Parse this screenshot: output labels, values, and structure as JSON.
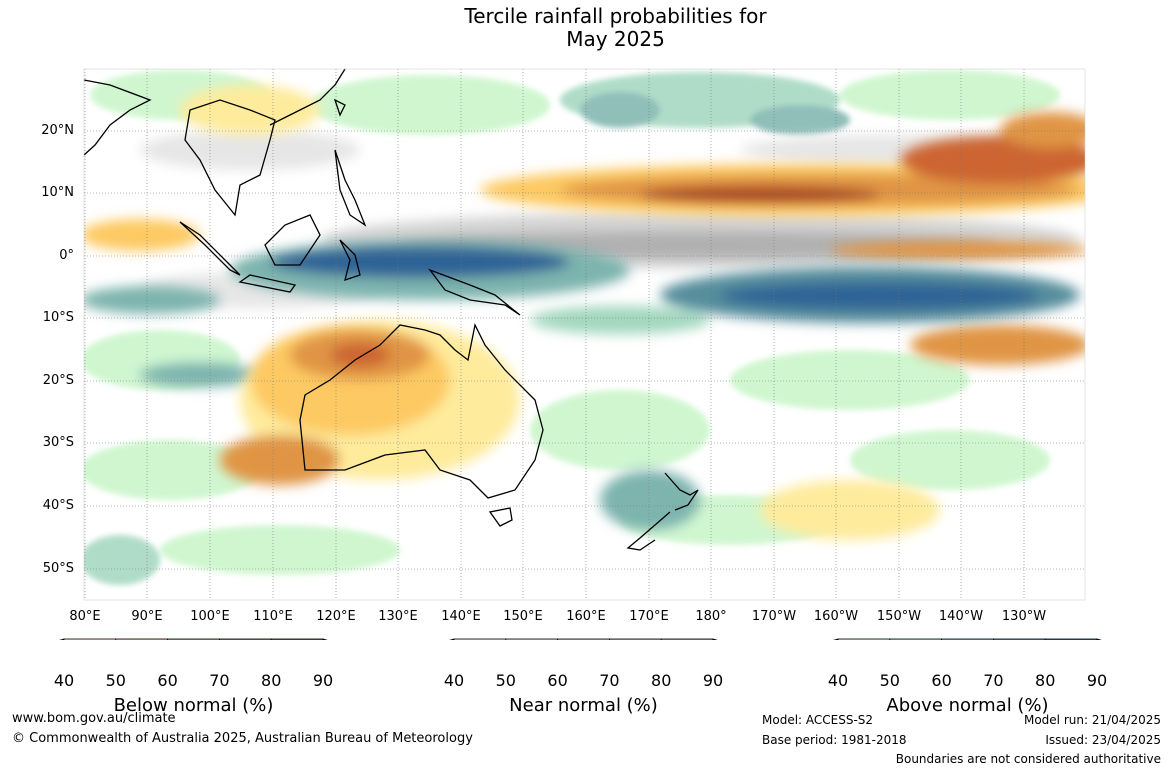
{
  "title": {
    "line1": "Tercile rainfall probabilities for",
    "line2": "May 2025"
  },
  "axes": {
    "latitude_labels": [
      "20°N",
      "10°N",
      "0°",
      "10°S",
      "20°S",
      "30°S",
      "40°S",
      "50°S"
    ],
    "longitude_labels": [
      "80°E",
      "90°E",
      "100°E",
      "110°E",
      "120°E",
      "130°E",
      "140°E",
      "150°E",
      "160°E",
      "170°E",
      "180°",
      "170°W",
      "160°W",
      "150°W",
      "140°W",
      "130°W"
    ]
  },
  "legends": [
    {
      "name": "Below normal (%)",
      "ticks": [
        "40",
        "50",
        "60",
        "70",
        "80",
        "90"
      ],
      "colors": [
        "#ffffff",
        "#feeb9c",
        "#fdc962",
        "#e09544",
        "#cc6533",
        "#ab4723",
        "#8a3117"
      ]
    },
    {
      "name": "Near normal (%)",
      "ticks": [
        "40",
        "50",
        "60",
        "70",
        "80",
        "90"
      ],
      "colors": [
        "#ffffff",
        "#e6e6e6",
        "#d4d4d4",
        "#c2c2c2",
        "#b0b0b0",
        "#a0a0a0",
        "#808080"
      ]
    },
    {
      "name": "Above normal (%)",
      "ticks": [
        "40",
        "50",
        "60",
        "70",
        "80",
        "90"
      ],
      "colors": [
        "#ffffff",
        "#c8f5c8",
        "#a2d7bf",
        "#7db4ae",
        "#568e9c",
        "#2e6496",
        "#1a4a7d"
      ]
    }
  ],
  "footer": {
    "website": "www.bom.gov.au/climate",
    "copyright": "© Commonwealth of Australia 2025, Australian Bureau of Meteorology",
    "model": "Model: ACCESS-S2",
    "base_period": "Base period: 1981-2018",
    "model_run": "Model run: 21/04/2025",
    "issued": "Issued: 23/04/2025",
    "disclaimer": "Boundaries are not considered authoritative"
  }
}
